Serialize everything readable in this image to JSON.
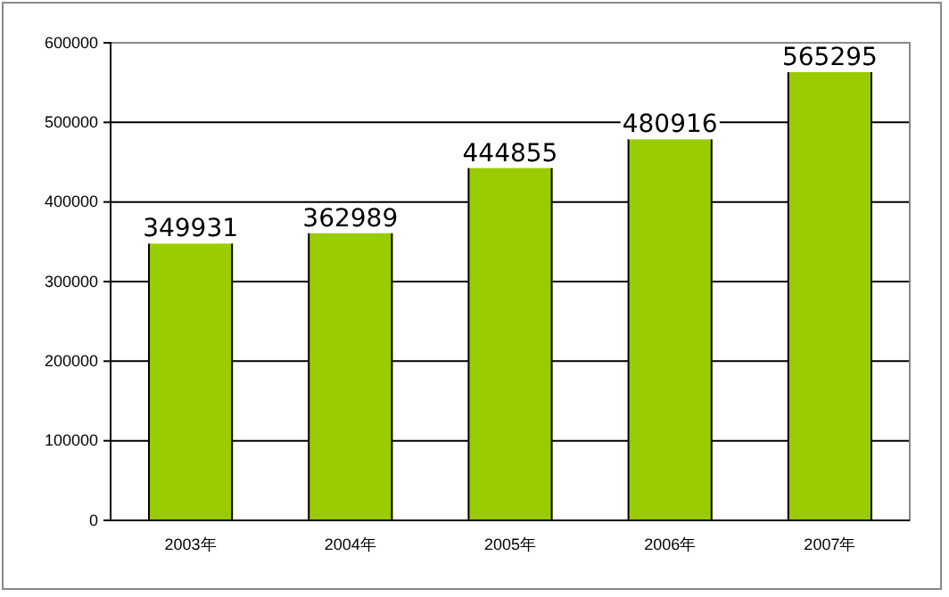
{
  "chart_data": {
    "type": "bar",
    "categories": [
      "2003年",
      "2004年",
      "2005年",
      "2006年",
      "2007年"
    ],
    "values": [
      349931,
      362989,
      444855,
      480916,
      565295
    ],
    "color": "#99cc00",
    "ylim": [
      0,
      600000
    ],
    "yticks": [
      0,
      100000,
      200000,
      300000,
      400000,
      500000,
      600000
    ],
    "grid": "y",
    "data_labels": true
  }
}
